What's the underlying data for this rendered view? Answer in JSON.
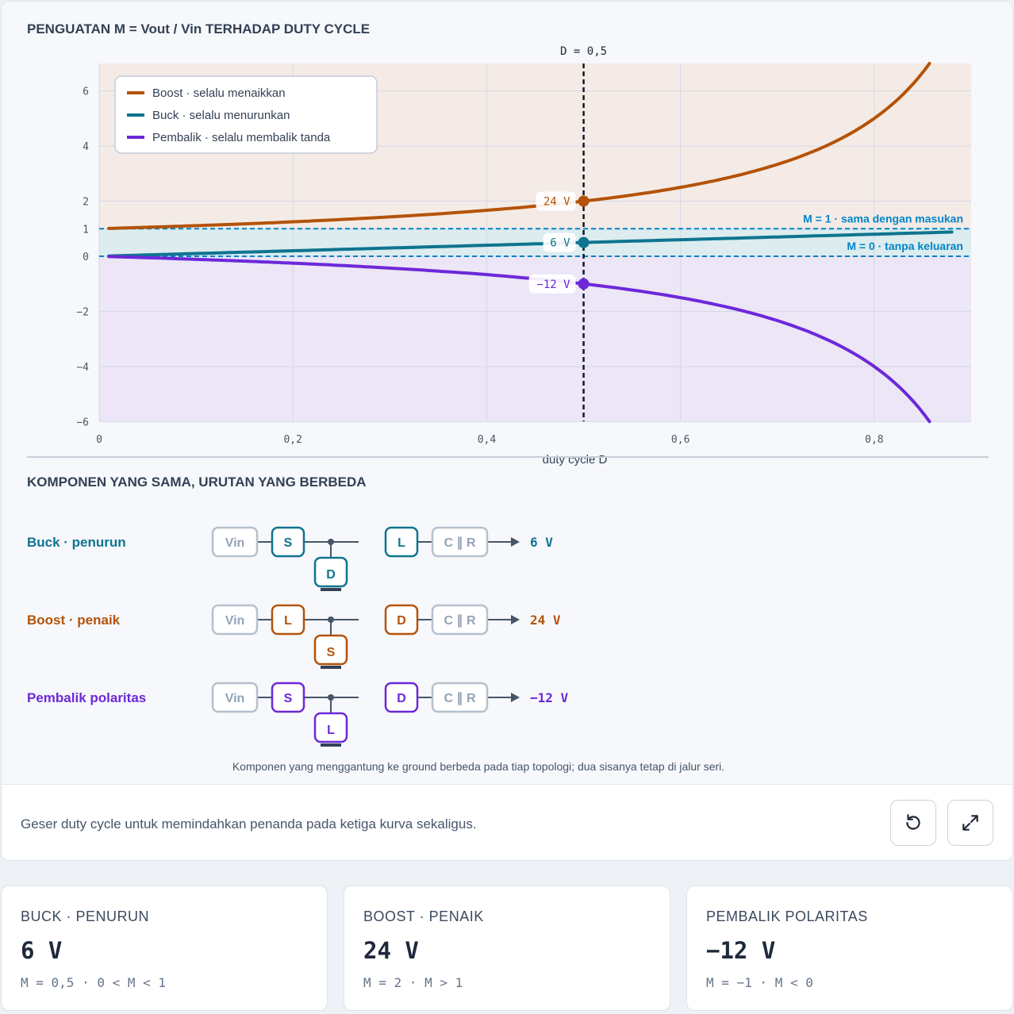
{
  "chart_title": "PENGUATAN M = Vout / Vin TERHADAP DUTY CYCLE",
  "section2_title": "KOMPONEN YANG SAMA, URUTAN YANG BERBEDA",
  "chart_data": {
    "type": "line",
    "xlabel": "duty cycle D",
    "ylabel": "",
    "xlim": [
      0,
      0.9
    ],
    "ylim": [
      -6,
      7
    ],
    "xticks": [
      {
        "v": 0,
        "label": "0"
      },
      {
        "v": 0.2,
        "label": "0,2"
      },
      {
        "v": 0.4,
        "label": "0,4"
      },
      {
        "v": 0.6,
        "label": "0,6"
      },
      {
        "v": 0.8,
        "label": "0,8"
      }
    ],
    "yticks": [
      {
        "v": 6,
        "label": "6"
      },
      {
        "v": 4,
        "label": "4"
      },
      {
        "v": 2,
        "label": "2"
      },
      {
        "v": 1,
        "label": "1"
      },
      {
        "v": 0,
        "label": "0"
      },
      {
        "v": -2,
        "label": "−2"
      },
      {
        "v": -4,
        "label": "−4"
      },
      {
        "v": -6,
        "label": "−6"
      }
    ],
    "series": [
      {
        "name": "Boost · selalu menaikkan",
        "color": "#b45309",
        "formula": "boost",
        "x": [
          0.01,
          0.1,
          0.2,
          0.3,
          0.4,
          0.5,
          0.6,
          0.7,
          0.8,
          0.857
        ],
        "y": [
          1.01,
          1.11,
          1.25,
          1.43,
          1.67,
          2.0,
          2.5,
          3.33,
          5.0,
          7.0
        ]
      },
      {
        "name": "Buck · selalu menurunkan",
        "color": "#0e7490",
        "formula": "buck",
        "x": [
          0.01,
          0.1,
          0.2,
          0.3,
          0.4,
          0.5,
          0.6,
          0.7,
          0.8,
          0.88
        ],
        "y": [
          0.01,
          0.1,
          0.2,
          0.3,
          0.4,
          0.5,
          0.6,
          0.7,
          0.8,
          0.88
        ]
      },
      {
        "name": "Pembalik · selalu membalik tanda",
        "color": "#6d28d9",
        "formula": "inv",
        "x": [
          0.01,
          0.1,
          0.2,
          0.3,
          0.4,
          0.5,
          0.6,
          0.7,
          0.8,
          0.857
        ],
        "y": [
          -0.01,
          -0.11,
          -0.25,
          -0.43,
          -0.67,
          -1.0,
          -1.5,
          -2.33,
          -4.0,
          -6.0
        ]
      }
    ],
    "marker_d": 0.5,
    "marker_label": "D = 0,5",
    "point_labels": [
      {
        "series": 0,
        "y": 2,
        "label": "24 V"
      },
      {
        "series": 1,
        "y": 0.5,
        "label": "6 V"
      },
      {
        "series": 2,
        "y": -1,
        "label": "−12 V"
      }
    ],
    "refline_1": "M = 1 · sama dengan masukan",
    "refline_0": "M = 0 · tanpa keluaran",
    "grid": true,
    "legend": "top-left",
    "bands": {
      "boost": "#f5ebe6",
      "buck": "#dcecef",
      "inv": "#ece6f6"
    }
  },
  "topologies": [
    {
      "name": "Buck · penurun",
      "color": "#0e7490",
      "vin": "Vin",
      "series": "S",
      "ground": "D",
      "second": "L",
      "cr": "C ∥ R",
      "out": "6 V"
    },
    {
      "name": "Boost · penaik",
      "color": "#b45309",
      "vin": "Vin",
      "series": "L",
      "ground": "S",
      "second": "D",
      "cr": "C ∥ R",
      "out": "24 V"
    },
    {
      "name": "Pembalik polaritas",
      "color": "#6d28d9",
      "vin": "Vin",
      "series": "S",
      "ground": "L",
      "second": "D",
      "cr": "C ∥ R",
      "out": "−12 V"
    }
  ],
  "topology_note": "Komponen yang menggantung ke ground berbeda pada tiap topologi; dua sisanya tetap di jalur seri.",
  "hint": "Geser duty cycle untuk memindahkan penanda pada ketiga kurva sekaligus.",
  "cards": [
    {
      "label": "BUCK · PENURUN",
      "value": "6 V",
      "sub": "M = 0,5 · 0 < M < 1"
    },
    {
      "label": "BOOST · PENAIK",
      "value": "24 V",
      "sub": "M = 2 · M > 1"
    },
    {
      "label": "PEMBALIK POLARITAS",
      "value": "−12 V",
      "sub": "M = −1 · M < 0"
    }
  ]
}
